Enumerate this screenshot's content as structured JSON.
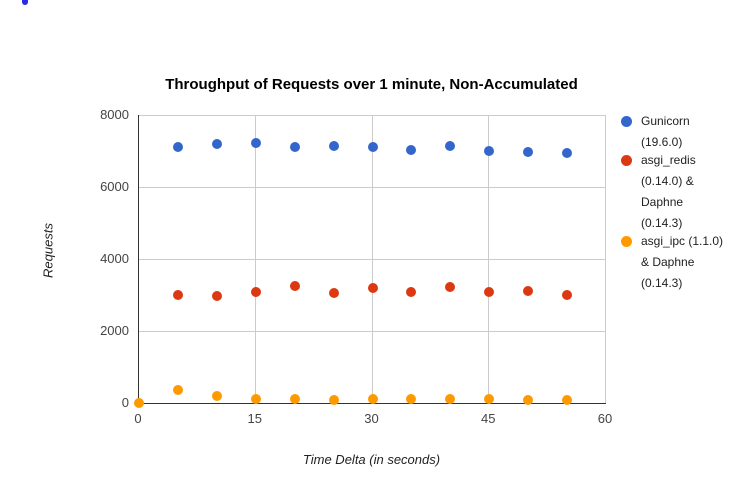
{
  "stray_element": {
    "description": "tiny blue dot artifact at top-left of page",
    "color": "#2b2be0"
  },
  "chart_data": {
    "type": "scatter",
    "title": "Throughput of Requests over 1 minute, Non-Accumulated",
    "xlabel": "Time Delta (in seconds)",
    "ylabel": "Requests",
    "xlim": [
      0,
      60
    ],
    "ylim": [
      0,
      8000
    ],
    "x_tick_values": [
      0,
      15,
      30,
      45,
      60
    ],
    "y_tick_values": [
      0,
      2000,
      4000,
      6000,
      8000
    ],
    "grid": true,
    "legend_position": "right",
    "series": [
      {
        "name": "Gunicorn (19.6.0)",
        "color": "#3366cc",
        "points": [
          [
            5,
            7100
          ],
          [
            10,
            7200
          ],
          [
            15,
            7230
          ],
          [
            20,
            7100
          ],
          [
            25,
            7130
          ],
          [
            30,
            7100
          ],
          [
            35,
            7020
          ],
          [
            40,
            7130
          ],
          [
            45,
            7000
          ],
          [
            50,
            6980
          ],
          [
            55,
            6950
          ]
        ]
      },
      {
        "name": "asgi_redis (0.14.0) & Daphne (0.14.3)",
        "color": "#dc3912",
        "points": [
          [
            5,
            3000
          ],
          [
            10,
            2980
          ],
          [
            15,
            3080
          ],
          [
            20,
            3250
          ],
          [
            25,
            3060
          ],
          [
            30,
            3200
          ],
          [
            35,
            3080
          ],
          [
            40,
            3220
          ],
          [
            45,
            3080
          ],
          [
            50,
            3110
          ],
          [
            55,
            3000
          ]
        ]
      },
      {
        "name": "asgi_ipc (1.1.0) & Daphne (0.14.3)",
        "color": "#ff9900",
        "points": [
          [
            0,
            0
          ],
          [
            5,
            360
          ],
          [
            10,
            200
          ],
          [
            15,
            120
          ],
          [
            20,
            100
          ],
          [
            25,
            90
          ],
          [
            30,
            110
          ],
          [
            35,
            110
          ],
          [
            40,
            100
          ],
          [
            45,
            100
          ],
          [
            50,
            85
          ],
          [
            55,
            85
          ]
        ]
      }
    ]
  }
}
